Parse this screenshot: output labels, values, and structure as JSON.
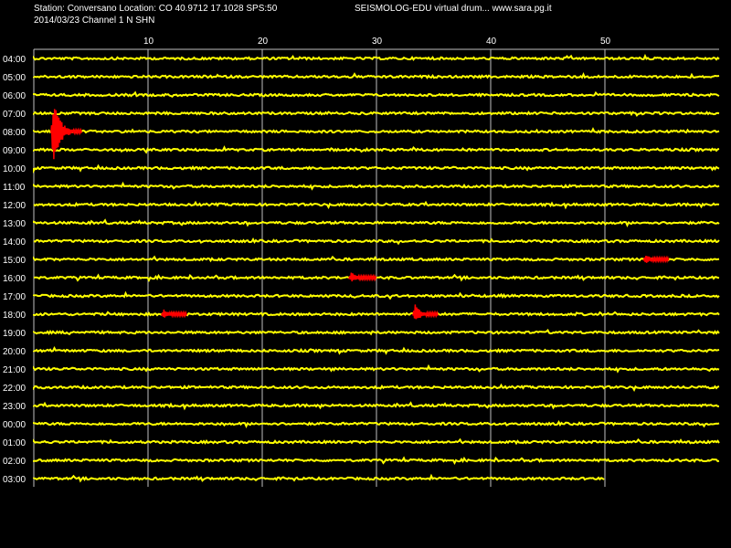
{
  "header": {
    "station_line": "Station: Conversano Location: CO 40.9712 17.1028 SPS:50",
    "date_line": "2014/03/23  Channel 1 N SHN",
    "brand_line": "SEISMOLOG-EDU virtual drum... www.sara.pg.it"
  },
  "colors": {
    "background": "#000000",
    "trace": "#ffff00",
    "event": "#ff0000",
    "grid": "#bfbfbf",
    "text": "#ffffff"
  },
  "chart_data": {
    "type": "line",
    "x_ticks": [
      10,
      20,
      30,
      40,
      50
    ],
    "x_range": [
      0,
      60
    ],
    "hour_rows": [
      "04:00",
      "05:00",
      "06:00",
      "07:00",
      "08:00",
      "09:00",
      "10:00",
      "11:00",
      "12:00",
      "13:00",
      "14:00",
      "15:00",
      "16:00",
      "17:00",
      "18:00",
      "19:00",
      "20:00",
      "21:00",
      "22:00",
      "23:00",
      "00:00",
      "01:00",
      "02:00",
      "03:00"
    ],
    "last_row_end_minute": 50,
    "events": [
      {
        "row": "08:00",
        "start": 1.5,
        "end": 4.2,
        "amplitude": "large"
      },
      {
        "row": "18:00",
        "start": 11.2,
        "end": 13.4,
        "amplitude": "small"
      },
      {
        "row": "16:00",
        "start": 27.6,
        "end": 30.0,
        "amplitude": "small"
      },
      {
        "row": "18:00",
        "start": 33.2,
        "end": 35.4,
        "amplitude": "medium"
      },
      {
        "row": "15:00",
        "start": 53.4,
        "end": 55.6,
        "amplitude": "small"
      }
    ]
  }
}
